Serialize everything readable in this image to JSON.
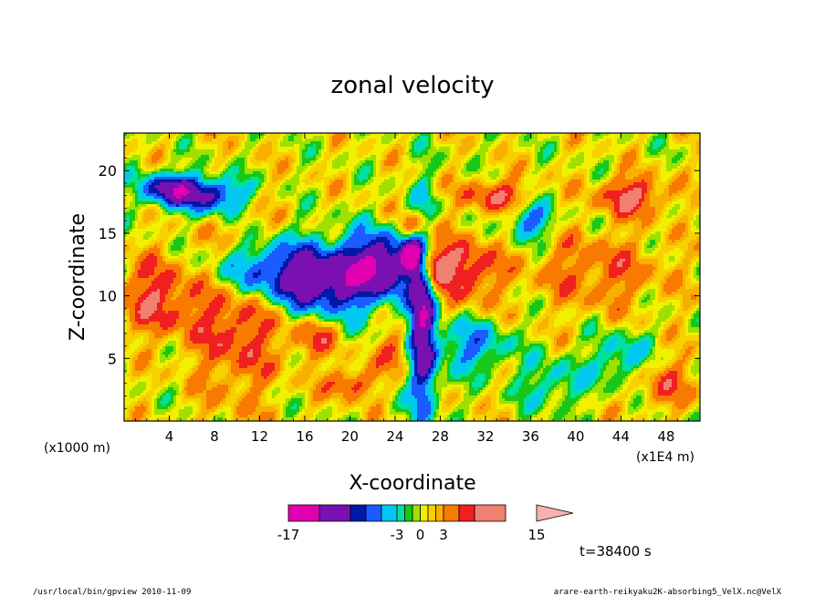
{
  "chart_data": {
    "type": "heatmap",
    "title": "zonal velocity",
    "xlabel": "X-coordinate",
    "ylabel": "Z-coordinate",
    "y_unit_label": "(x1000 m)",
    "x_unit_label": "(x1E4 m)",
    "xlim": [
      0,
      51
    ],
    "ylim": [
      0,
      23
    ],
    "xticks": [
      4,
      8,
      12,
      16,
      20,
      24,
      28,
      32,
      36,
      40,
      44,
      48
    ],
    "yticks": [
      5,
      10,
      15,
      20
    ],
    "time_label": "t=38400 s",
    "colorbar": {
      "min": -17,
      "max": 15,
      "levels": [
        -17,
        -13,
        -9,
        -7,
        -5,
        -3,
        -2,
        -1,
        0,
        1,
        2,
        3,
        5,
        7,
        11,
        15
      ],
      "colors": [
        "#e000b0",
        "#7a10b0",
        "#0018a8",
        "#1a5cff",
        "#00c8f0",
        "#00e0a0",
        "#18c818",
        "#9ee000",
        "#f0f000",
        "#f8d000",
        "#f8b000",
        "#f87a00",
        "#f02020",
        "#f08070",
        "#f8b0b0"
      ],
      "tick_labels": [
        {
          "value": -17,
          "label": "-17"
        },
        {
          "value": -3,
          "label": "-3"
        },
        {
          "value": 0,
          "label": "0"
        },
        {
          "value": 3,
          "label": "3"
        },
        {
          "value": 15,
          "label": "15"
        }
      ]
    },
    "features": [
      {
        "x": 10,
        "z": 9,
        "v": 6,
        "rx": 4,
        "rz": 7
      },
      {
        "x": 3,
        "z": 10,
        "v": 6,
        "rx": 3.5,
        "rz": 3
      },
      {
        "x": 4,
        "z": 18.5,
        "v": -11,
        "rx": 2.5,
        "rz": 1.3
      },
      {
        "x": 8,
        "z": 18,
        "v": -10,
        "rx": 3,
        "rz": 1.5
      },
      {
        "x": 12,
        "z": 12,
        "v": -10,
        "rx": 5,
        "rz": 2.5
      },
      {
        "x": 18,
        "z": 11,
        "v": -11,
        "rx": 4,
        "rz": 3
      },
      {
        "x": 23,
        "z": 12.5,
        "v": -13,
        "rx": 3,
        "rz": 2.5
      },
      {
        "x": 26.5,
        "z": 8,
        "v": -13,
        "rx": 1.2,
        "rz": 8
      },
      {
        "x": 25.5,
        "z": 13,
        "v": -15,
        "rx": 0.8,
        "rz": 1.2
      },
      {
        "x": 27,
        "z": 12.5,
        "v": 11,
        "rx": 1.5,
        "rz": 1.5
      },
      {
        "x": 30,
        "z": 12,
        "v": 7,
        "rx": 3,
        "rz": 2.5
      },
      {
        "x": 26,
        "z": 15.5,
        "v": 7,
        "rx": 1.5,
        "rz": 1.2
      },
      {
        "x": 36,
        "z": 16,
        "v": -7,
        "rx": 2,
        "rz": 1.5
      },
      {
        "x": 33,
        "z": 18,
        "v": 6,
        "rx": 3,
        "rz": 1.3
      },
      {
        "x": 45,
        "z": 18,
        "v": 7,
        "rx": 3,
        "rz": 1.5
      },
      {
        "x": 42,
        "z": 12,
        "v": 4,
        "rx": 6,
        "rz": 3
      },
      {
        "x": 44,
        "z": 5,
        "v": -5,
        "rx": 2.5,
        "rz": 2
      },
      {
        "x": 20,
        "z": 3,
        "v": 6,
        "rx": 2,
        "rz": 1.2
      },
      {
        "x": 24,
        "z": 5.5,
        "v": 5,
        "rx": 1.5,
        "rz": 1.5
      },
      {
        "x": 31,
        "z": 6,
        "v": -6,
        "rx": 3,
        "rz": 2
      },
      {
        "x": 38,
        "z": 3,
        "v": -4,
        "rx": 3,
        "rz": 2
      },
      {
        "x": 48,
        "z": 3,
        "v": 4,
        "rx": 3,
        "rz": 2
      },
      {
        "x": 17,
        "z": 7,
        "v": 5,
        "rx": 2.5,
        "rz": 2
      }
    ]
  },
  "footer": {
    "left": "/usr/local/bin/gpview   2010-11-09",
    "right": "arare-earth-reikyaku2K-absorbing5_VelX.nc@VelX"
  }
}
